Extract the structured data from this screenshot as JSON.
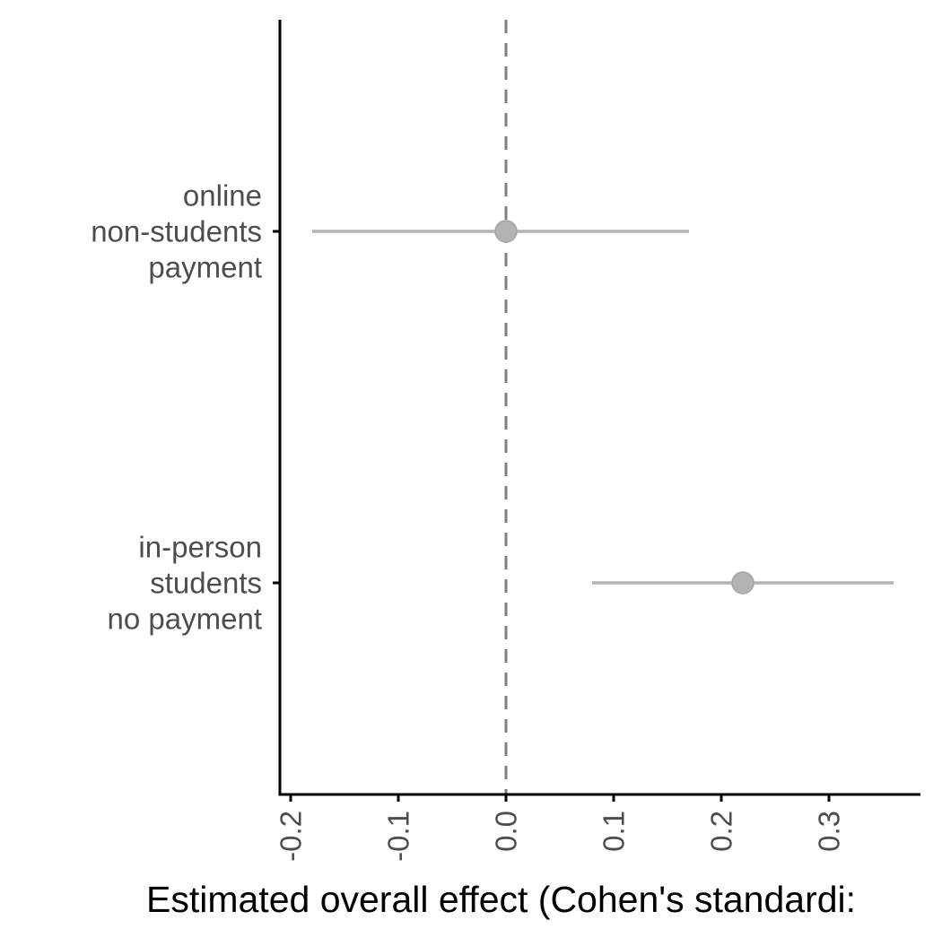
{
  "chart_data": {
    "type": "scatter",
    "subtype": "forest-plot",
    "title": "",
    "xlabel": "Estimated overall effect (Cohen's standardi:",
    "ylabel": "",
    "xlim": [
      -0.21,
      0.385
    ],
    "x_ticks": [
      -0.2,
      -0.1,
      0.0,
      0.1,
      0.2,
      0.3
    ],
    "x_tick_labels": [
      "-0.2",
      "-0.1",
      "0.0",
      "0.1",
      "0.2",
      "0.3"
    ],
    "x_tick_label_rotation": "vertical",
    "reference_line": {
      "x": 0.0,
      "style": "dashed"
    },
    "grid": false,
    "legend": "none",
    "categories": [
      {
        "lines": [
          "online",
          "non-students",
          "payment"
        ]
      },
      {
        "lines": [
          "in-person",
          "students",
          "no payment"
        ]
      }
    ],
    "series": [
      {
        "points": [
          {
            "category_index": 0,
            "estimate": 0.0,
            "ci_low": -0.18,
            "ci_high": 0.17
          },
          {
            "category_index": 1,
            "estimate": 0.22,
            "ci_low": 0.08,
            "ci_high": 0.36
          }
        ]
      }
    ],
    "colors": {
      "point": "#b3b3b3",
      "point_edge": "#a6a6a6",
      "interval": "#b3b3b3",
      "reference_line": "#7f7f7f",
      "axis": "#000000",
      "tick_label": "#4d4d4d",
      "axis_title": "#000000"
    }
  }
}
